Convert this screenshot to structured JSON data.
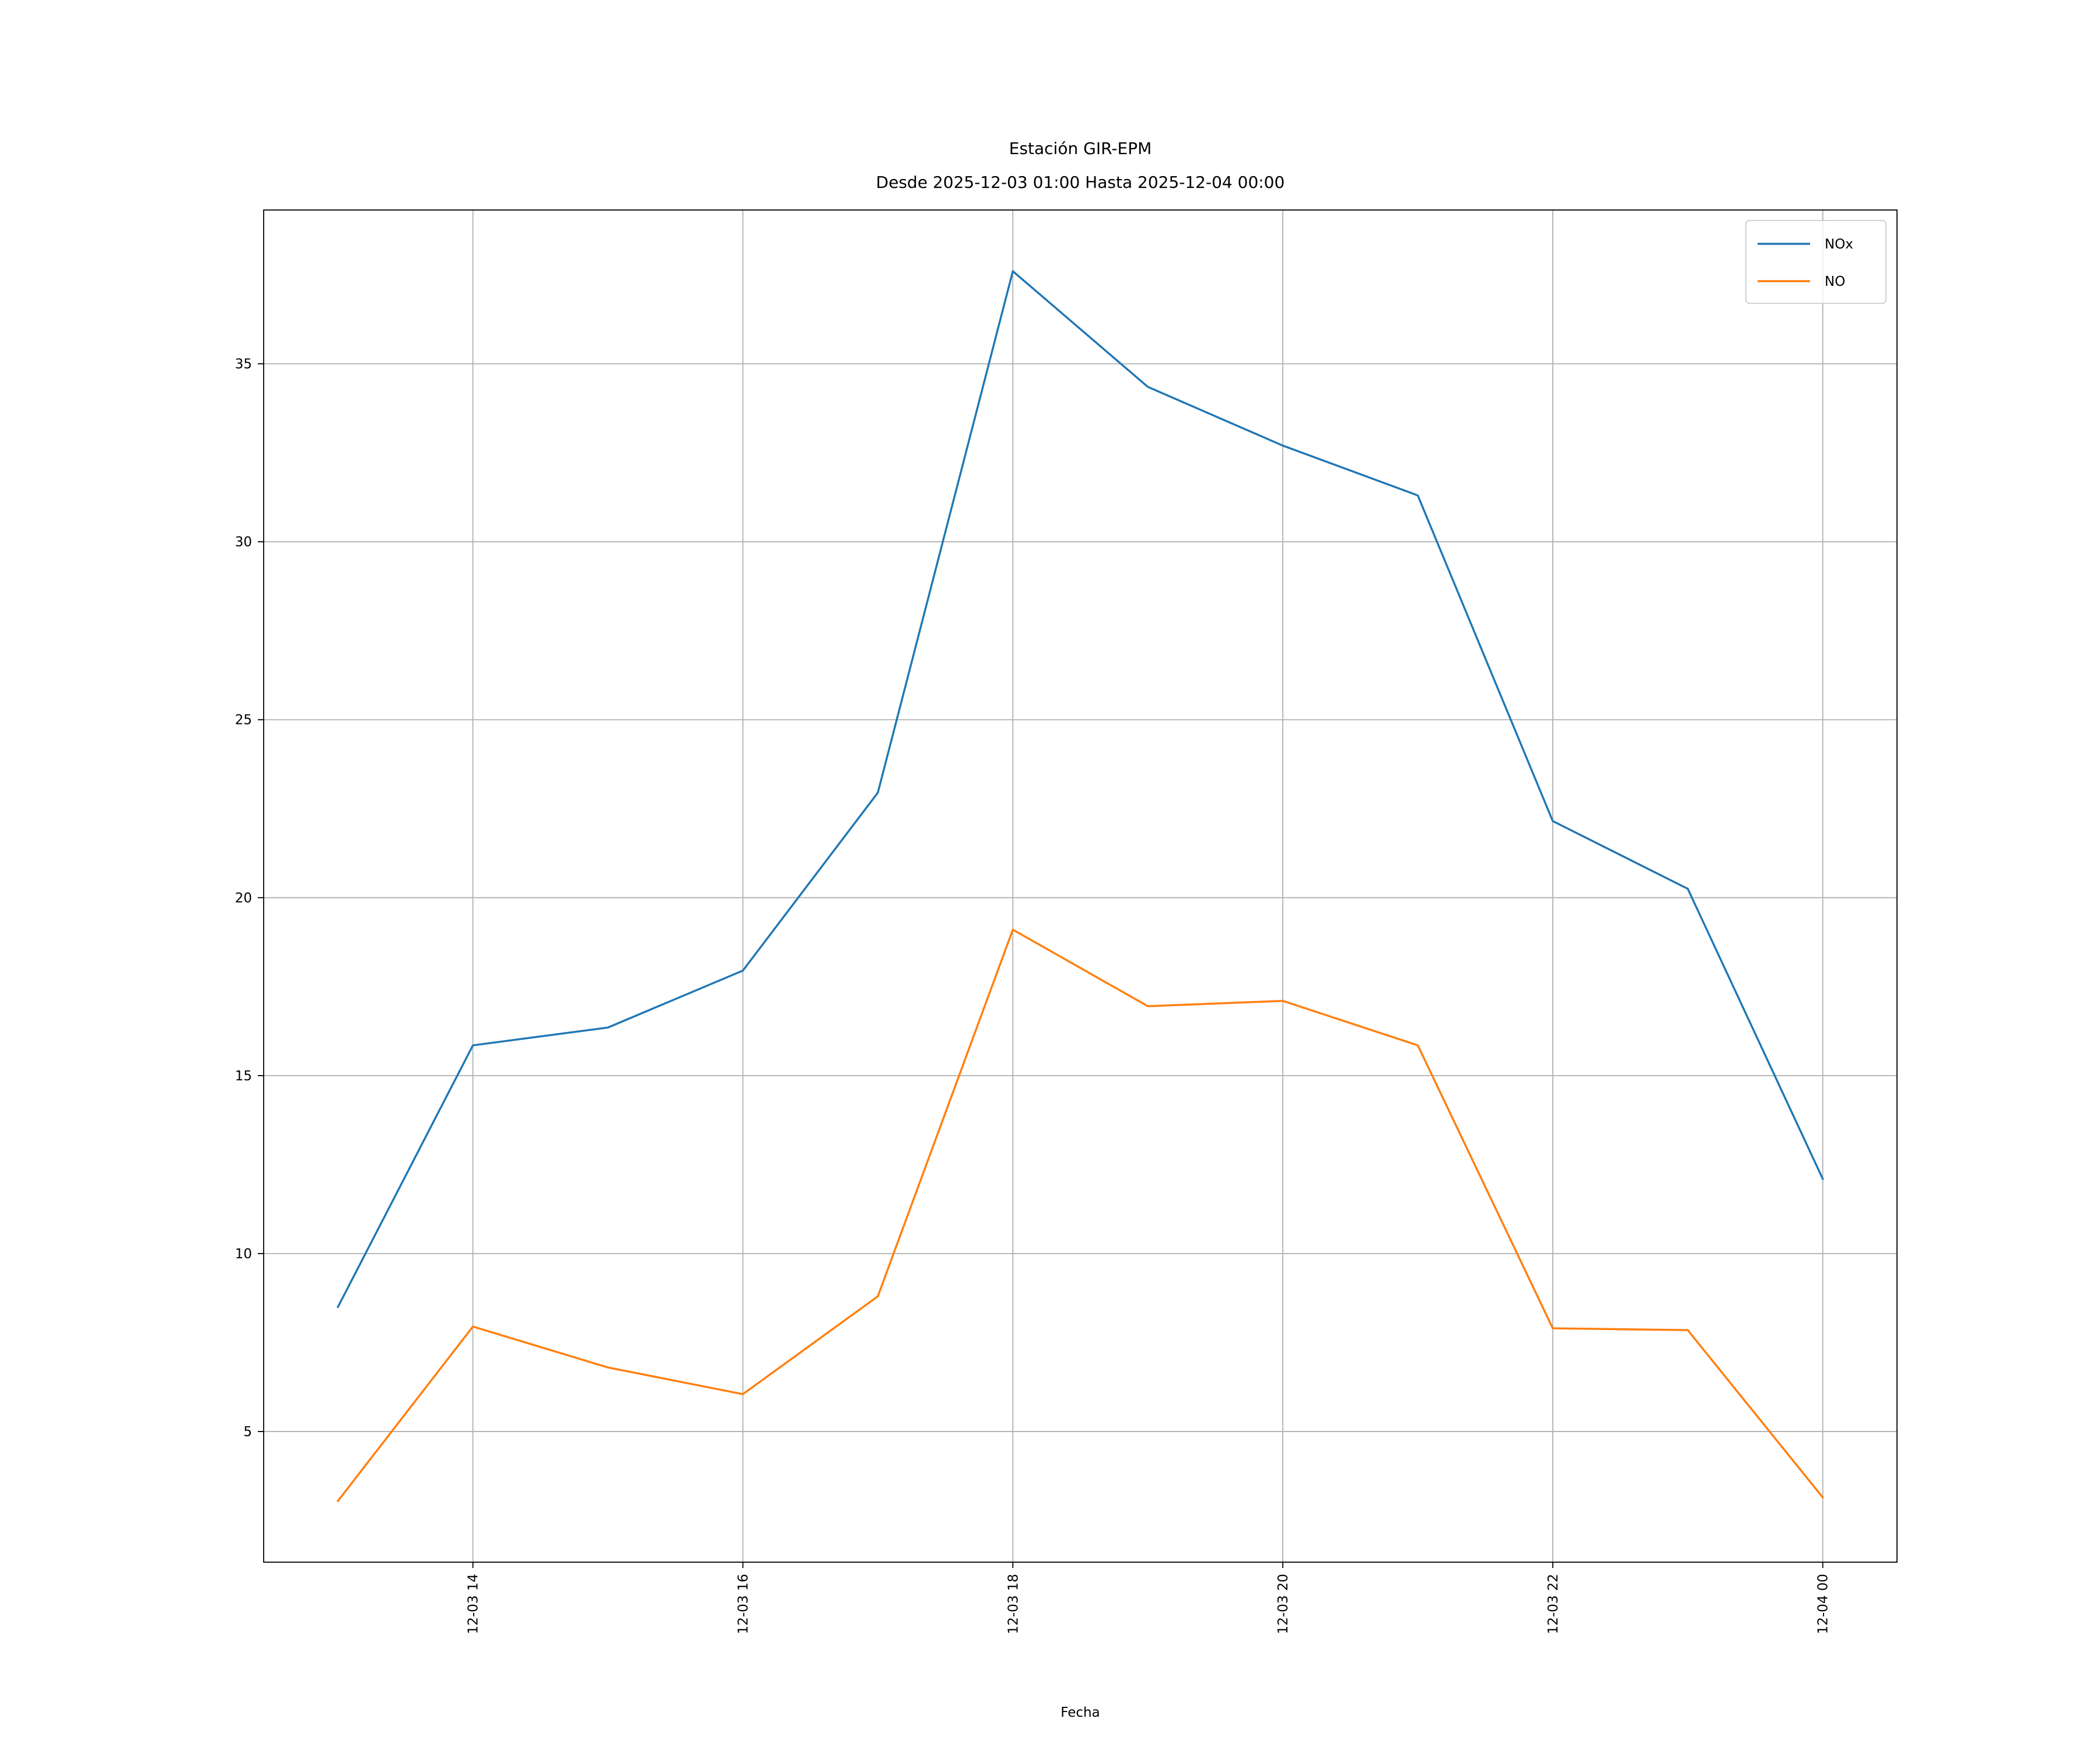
{
  "chart_data": {
    "type": "line",
    "title": "Estación GIR-EPM",
    "subtitle": "Desde 2025-12-03 01:00 Hasta 2025-12-04 00:00",
    "xlabel": "Fecha",
    "ylabel": "",
    "x": [
      "2025-12-03 13:00",
      "2025-12-03 14:00",
      "2025-12-03 15:00",
      "2025-12-03 16:00",
      "2025-12-03 17:00",
      "2025-12-03 18:00",
      "2025-12-03 19:00",
      "2025-12-03 20:00",
      "2025-12-03 21:00",
      "2025-12-03 22:00",
      "2025-12-03 23:00",
      "2025-12-04 00:00"
    ],
    "series": [
      {
        "name": "NOx",
        "color": "#1f77b4",
        "values": [
          8.5,
          15.85,
          16.35,
          17.95,
          22.95,
          37.6,
          34.35,
          32.7,
          31.3,
          22.15,
          20.25,
          12.1
        ]
      },
      {
        "name": "NO",
        "color": "#ff7f0e",
        "values": [
          3.05,
          7.95,
          6.8,
          6.05,
          8.8,
          19.1,
          16.95,
          17.1,
          15.85,
          7.9,
          7.85,
          3.15
        ]
      }
    ],
    "x_ticks": [
      {
        "x": "2025-12-03 14:00",
        "label": "12-03 14"
      },
      {
        "x": "2025-12-03 16:00",
        "label": "12-03 16"
      },
      {
        "x": "2025-12-03 18:00",
        "label": "12-03 18"
      },
      {
        "x": "2025-12-03 20:00",
        "label": "12-03 20"
      },
      {
        "x": "2025-12-03 22:00",
        "label": "12-03 22"
      },
      {
        "x": "2025-12-04 00:00",
        "label": "12-04 00"
      }
    ],
    "y_ticks": [
      {
        "y": 5,
        "label": "5"
      },
      {
        "y": 10,
        "label": "10"
      },
      {
        "y": 15,
        "label": "15"
      },
      {
        "y": 20,
        "label": "20"
      },
      {
        "y": 25,
        "label": "25"
      },
      {
        "y": 30,
        "label": "30"
      },
      {
        "y": 35,
        "label": "35"
      }
    ],
    "xlim": [
      "2025-12-03 12:27",
      "2025-12-04 00:33"
    ],
    "ylim": [
      1.33,
      39.32
    ],
    "grid": true,
    "legend": "top-right"
  }
}
